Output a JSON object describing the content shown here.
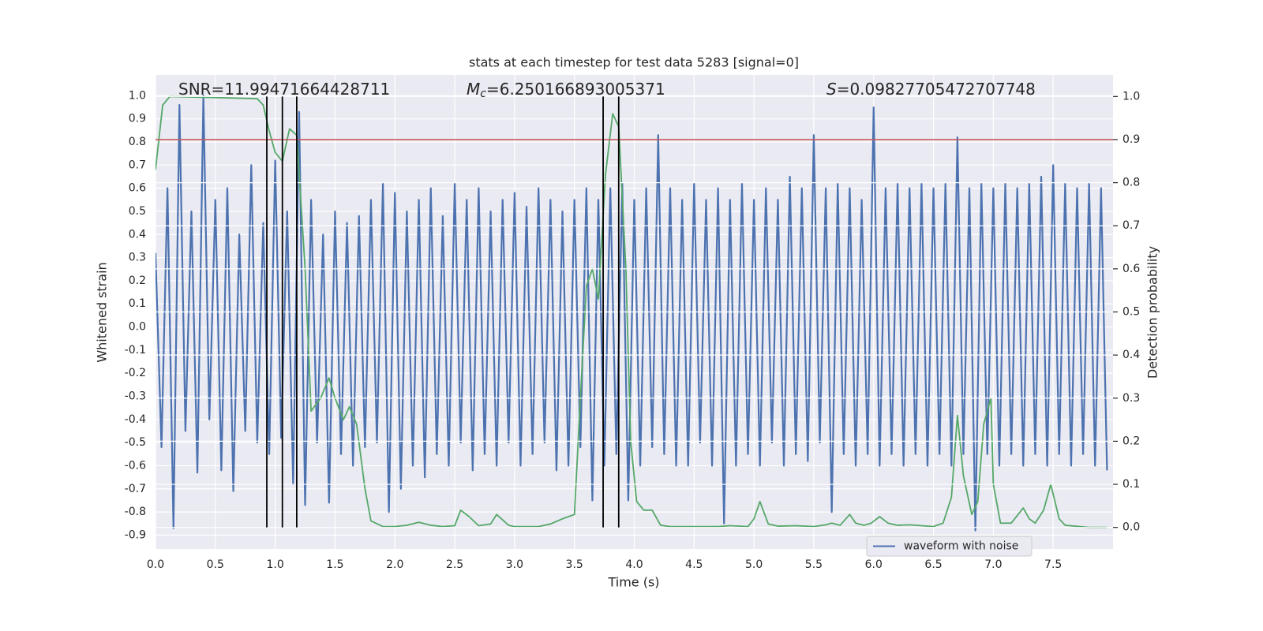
{
  "chart_data": {
    "type": "line",
    "title": "stats at each timestep for test data 5283 [signal=0]",
    "x_label": "Time (s)",
    "y_label": "Whitened strain",
    "y2_label": "Detection probability",
    "annotations": [
      {
        "text": "SNR=11.99471664428711"
      },
      {
        "symbol": "M",
        "subscript": "c",
        "text": "=6.250166893005371"
      },
      {
        "symbol": "S",
        "text": "=0.09827705472707748"
      }
    ],
    "xlim": [
      0,
      8
    ],
    "ylim": [
      -0.96,
      1.09
    ],
    "y2lim": [
      -0.05,
      1.05
    ],
    "xticks": [
      {
        "value": 0,
        "label": "0.0"
      },
      0.5,
      {
        "value": 1,
        "label": "1.0"
      },
      1.5,
      {
        "value": 2,
        "label": "2.0"
      },
      2.5,
      {
        "value": 3,
        "label": "3.0"
      },
      3.5,
      {
        "value": 4,
        "label": "4.0"
      },
      4.5,
      {
        "value": 5,
        "label": "5.0"
      },
      5.5,
      {
        "value": 6,
        "label": "6.0"
      },
      6.5,
      {
        "value": 7,
        "label": "7.0"
      },
      7.5
    ],
    "yticks": [
      -0.9,
      -0.8,
      -0.7,
      -0.6,
      -0.5,
      -0.4,
      -0.3,
      -0.2,
      -0.1,
      {
        "value": 0,
        "label": "0.0"
      },
      0.1,
      0.2,
      0.3,
      0.4,
      0.5,
      0.6,
      0.7,
      0.8,
      0.9,
      {
        "value": 1,
        "label": "1.0"
      }
    ],
    "y2ticks": [
      {
        "value": 0,
        "label": "0.0"
      },
      0.1,
      0.2,
      0.3,
      0.4,
      0.5,
      0.6,
      0.7,
      0.8,
      0.9,
      {
        "value": 1,
        "label": "1.0"
      }
    ],
    "grid": true,
    "legend": "lower right",
    "series": [
      {
        "name": "waveform with noise",
        "color": "#4c72b0",
        "axis": "y",
        "x": [
          0,
          0.05,
          0.1,
          0.15,
          0.2,
          0.25,
          0.3,
          0.35,
          0.4,
          0.45,
          0.5,
          0.55,
          0.6,
          0.65,
          0.7,
          0.75,
          0.8,
          0.85,
          0.9,
          0.95,
          1,
          1.05,
          1.1,
          1.15,
          1.2,
          1.25,
          1.3,
          1.35,
          1.4,
          1.45,
          1.5,
          1.55,
          1.6,
          1.65,
          1.7,
          1.75,
          1.8,
          1.85,
          1.9,
          1.95,
          2,
          2.05,
          2.1,
          2.15,
          2.2,
          2.25,
          2.3,
          2.35,
          2.4,
          2.45,
          2.5,
          2.55,
          2.6,
          2.65,
          2.7,
          2.75,
          2.8,
          2.85,
          2.9,
          2.95,
          3,
          3.05,
          3.1,
          3.15,
          3.2,
          3.25,
          3.3,
          3.35,
          3.4,
          3.45,
          3.5,
          3.55,
          3.6,
          3.65,
          3.7,
          3.75,
          3.8,
          3.85,
          3.9,
          3.95,
          4,
          4.05,
          4.1,
          4.15,
          4.2,
          4.25,
          4.3,
          4.35,
          4.4,
          4.45,
          4.5,
          4.55,
          4.6,
          4.65,
          4.7,
          4.75,
          4.8,
          4.85,
          4.9,
          4.95,
          5,
          5.05,
          5.1,
          5.15,
          5.2,
          5.25,
          5.3,
          5.35,
          5.4,
          5.45,
          5.5,
          5.55,
          5.6,
          5.65,
          5.7,
          5.75,
          5.8,
          5.85,
          5.9,
          5.95,
          6,
          6.05,
          6.1,
          6.15,
          6.2,
          6.25,
          6.3,
          6.35,
          6.4,
          6.45,
          6.5,
          6.55,
          6.6,
          6.65,
          6.7,
          6.75,
          6.8,
          6.85,
          6.9,
          6.95,
          7,
          7.05,
          7.1,
          7.15,
          7.2,
          7.25,
          7.3,
          7.35,
          7.4,
          7.45,
          7.5,
          7.55,
          7.6,
          7.65,
          7.7,
          7.75,
          7.8,
          7.85,
          7.9,
          7.95
        ],
        "values": [
          0.32,
          -0.52,
          0.6,
          -0.87,
          0.96,
          -0.45,
          0.5,
          -0.63,
          1.0,
          -0.4,
          0.55,
          -0.62,
          0.6,
          -0.71,
          0.4,
          -0.45,
          0.7,
          -0.5,
          0.45,
          -0.55,
          0.72,
          -0.48,
          0.5,
          -0.68,
          0.93,
          -0.77,
          0.55,
          -0.5,
          0.4,
          -0.76,
          0.5,
          -0.55,
          0.45,
          -0.6,
          0.48,
          -0.52,
          0.55,
          -0.5,
          0.62,
          -0.8,
          0.58,
          -0.7,
          0.5,
          -0.6,
          0.55,
          -0.65,
          0.6,
          -0.55,
          0.48,
          -0.6,
          0.62,
          -0.5,
          0.55,
          -0.62,
          0.6,
          -0.55,
          0.5,
          -0.6,
          0.55,
          -0.5,
          0.58,
          -0.6,
          0.52,
          -0.55,
          0.6,
          -0.5,
          0.55,
          -0.62,
          0.5,
          -0.6,
          0.55,
          -0.52,
          0.6,
          -0.75,
          0.55,
          -0.6,
          0.6,
          -0.55,
          0.62,
          -0.75,
          0.55,
          -0.6,
          0.6,
          -0.52,
          0.83,
          -0.55,
          0.6,
          -0.6,
          0.55,
          -0.6,
          0.62,
          -0.5,
          0.55,
          -0.6,
          0.6,
          -0.85,
          0.55,
          -0.6,
          0.62,
          -0.55,
          0.55,
          -0.6,
          0.6,
          -0.5,
          0.55,
          -0.6,
          0.65,
          -0.55,
          0.6,
          -0.58,
          0.83,
          -0.5,
          0.6,
          -0.8,
          0.62,
          -0.55,
          0.6,
          -0.6,
          0.55,
          -0.55,
          0.95,
          -0.6,
          0.6,
          -0.55,
          0.62,
          -0.6,
          0.6,
          -0.55,
          0.62,
          -0.6,
          0.6,
          -0.55,
          0.62,
          -0.6,
          0.82,
          -0.55,
          0.6,
          -0.88,
          0.62,
          -0.55,
          0.6,
          -0.6,
          0.62,
          -0.55,
          0.6,
          -0.6,
          0.62,
          -0.55,
          0.65,
          -0.6,
          0.7,
          -0.55,
          0.62,
          -0.6,
          0.6,
          -0.55,
          0.62,
          -0.6,
          0.6,
          -0.62
        ]
      },
      {
        "color": "#55a868",
        "axis": "y2",
        "x": [
          0,
          0.06,
          0.12,
          0.85,
          0.9,
          0.95,
          1,
          1.06,
          1.12,
          1.18,
          1.25,
          1.3,
          1.38,
          1.45,
          1.5,
          1.57,
          1.62,
          1.68,
          1.75,
          1.8,
          1.9,
          2,
          2.1,
          2.2,
          2.3,
          2.4,
          2.5,
          2.55,
          2.62,
          2.7,
          2.8,
          2.85,
          2.95,
          3,
          3.2,
          3.3,
          3.4,
          3.45,
          3.5,
          3.55,
          3.6,
          3.65,
          3.7,
          3.76,
          3.82,
          3.87,
          3.93,
          3.97,
          4.02,
          4.08,
          4.15,
          4.22,
          4.3,
          4.5,
          4.7,
          4.8,
          4.95,
          5,
          5.05,
          5.12,
          5.2,
          5.35,
          5.5,
          5.6,
          5.65,
          5.72,
          5.8,
          5.85,
          5.92,
          5.98,
          6.05,
          6.12,
          6.2,
          6.3,
          6.4,
          6.5,
          6.58,
          6.65,
          6.7,
          6.75,
          6.82,
          6.87,
          6.92,
          6.98,
          7,
          7.06,
          7.15,
          7.25,
          7.3,
          7.35,
          7.42,
          7.48,
          7.55,
          7.6,
          7.8,
          7.95
        ],
        "values": [
          0.83,
          0.98,
          1.0,
          0.995,
          0.98,
          0.92,
          0.87,
          0.85,
          0.925,
          0.91,
          0.6,
          0.27,
          0.3,
          0.347,
          0.3,
          0.25,
          0.28,
          0.24,
          0.09,
          0.015,
          0.002,
          0.002,
          0.005,
          0.012,
          0.005,
          0.002,
          0.004,
          0.04,
          0.025,
          0.004,
          0.008,
          0.03,
          0.005,
          0.002,
          0.002,
          0.008,
          0.02,
          0.025,
          0.03,
          0.3,
          0.56,
          0.6,
          0.53,
          0.82,
          0.96,
          0.93,
          0.6,
          0.2,
          0.06,
          0.04,
          0.04,
          0.005,
          0.002,
          0.002,
          0.002,
          0.004,
          0.002,
          0.02,
          0.06,
          0.008,
          0.003,
          0.004,
          0.002,
          0.006,
          0.01,
          0.005,
          0.03,
          0.01,
          0.005,
          0.01,
          0.025,
          0.01,
          0.005,
          0.006,
          0.004,
          0.002,
          0.01,
          0.07,
          0.26,
          0.12,
          0.03,
          0.06,
          0.24,
          0.3,
          0.1,
          0.01,
          0.01,
          0.045,
          0.02,
          0.01,
          0.04,
          0.1,
          0.02,
          0.005,
          0.0,
          0.0
        ]
      }
    ],
    "threshold": {
      "value": 0.9,
      "axis": "y2",
      "color": "#c44e52"
    },
    "vlines": {
      "x": [
        0.93,
        1.06,
        1.18,
        3.74,
        3.87
      ],
      "ymin": 0,
      "ymax": 1,
      "axis": "y2",
      "color": "#000000"
    }
  }
}
